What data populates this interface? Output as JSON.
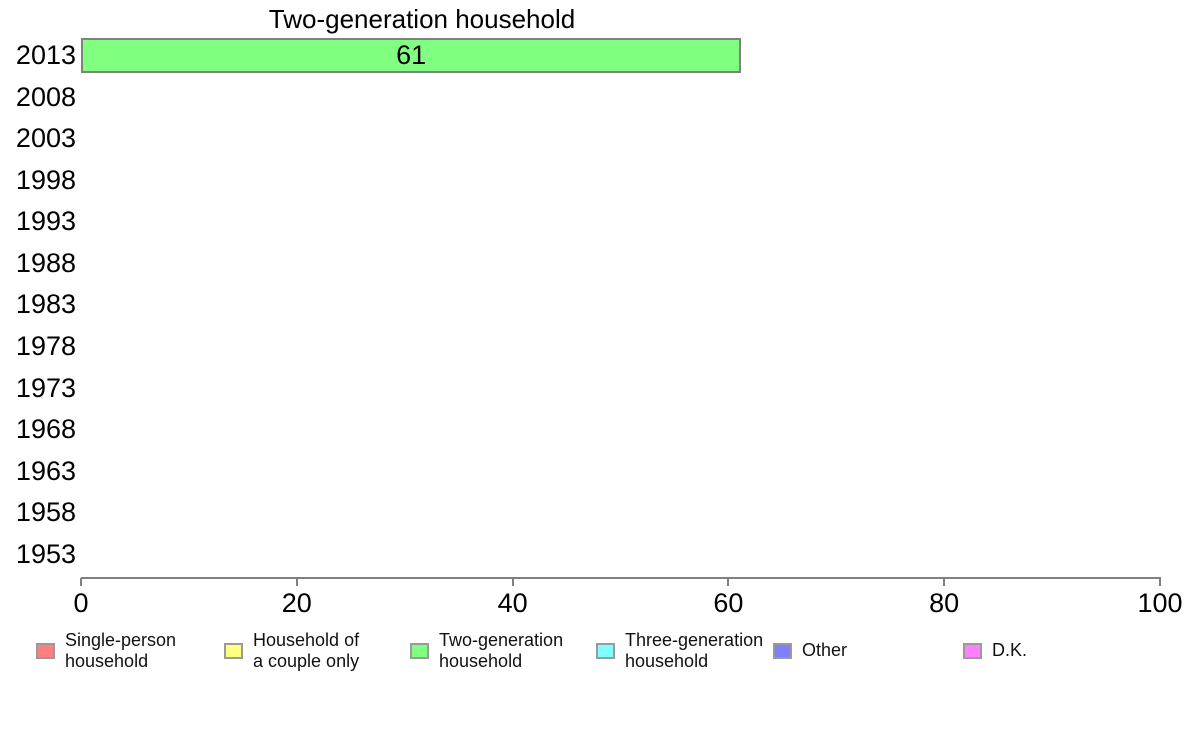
{
  "chart_data": {
    "type": "bar",
    "orientation": "horizontal",
    "title": "Two-generation household",
    "categories": [
      "2013",
      "2008",
      "2003",
      "1998",
      "1993",
      "1988",
      "1983",
      "1978",
      "1973",
      "1968",
      "1963",
      "1958",
      "1953"
    ],
    "values": [
      61,
      null,
      null,
      null,
      null,
      null,
      null,
      null,
      null,
      null,
      null,
      null,
      null
    ],
    "data_labels": [
      "61",
      "",
      "",
      "",
      "",
      "",
      "",
      "",
      "",
      "",
      "",
      "",
      ""
    ],
    "xlabel": "",
    "ylabel": "",
    "xlim": [
      0,
      100
    ],
    "x_ticks": [
      "0",
      "20",
      "40",
      "60",
      "80",
      "100"
    ],
    "x_tick_values": [
      0,
      20,
      40,
      60,
      80,
      100
    ],
    "grid": false,
    "bar_fill_color": "#80FF80",
    "bar_border_color": "#808080",
    "axis_color": "#808080",
    "text_color": "#000000",
    "legend_position": "bottom",
    "legend": [
      {
        "label_lines": [
          "Single-person",
          "household"
        ],
        "color": "#FF8080"
      },
      {
        "label_lines": [
          "Household of",
          "a couple only"
        ],
        "color": "#FFFF80"
      },
      {
        "label_lines": [
          "Two-generation",
          "household"
        ],
        "color": "#80FF80"
      },
      {
        "label_lines": [
          "Three-generation",
          "household"
        ],
        "color": "#80FFFF"
      },
      {
        "label_lines": [
          "Other"
        ],
        "color": "#8080FF"
      },
      {
        "label_lines": [
          "D.K."
        ],
        "color": "#FF80FF"
      }
    ]
  }
}
